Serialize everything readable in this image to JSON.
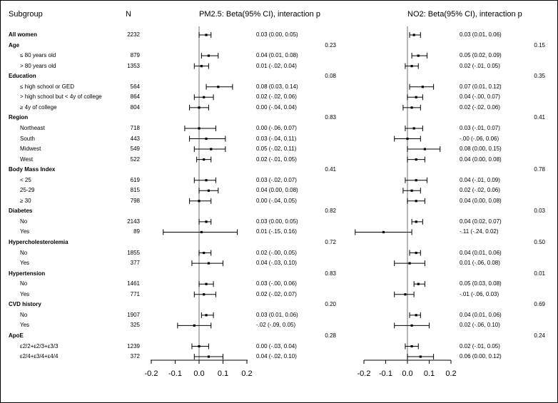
{
  "headers": {
    "subgroup": "Subgroup",
    "n": "N",
    "pm25": "PM2.5: Beta(95% CI), interaction p",
    "no2": "NO2: Beta(95% CI), interaction p"
  },
  "chart_data": {
    "type": "forest",
    "panels": [
      {
        "name": "PM2.5",
        "title": "PM2.5: Beta(95% CI), interaction p",
        "xlim": [
          -0.25,
          0.22
        ],
        "ticks": [
          -0.2,
          -0.1,
          0.0,
          0.1,
          0.2
        ],
        "tick_labels": [
          "-0.2",
          "-0.1",
          "0.0",
          "0.1",
          "0.2"
        ]
      },
      {
        "name": "NO2",
        "title": "NO2: Beta(95% CI), interaction p",
        "xlim": [
          -0.25,
          0.22
        ],
        "ticks": [
          -0.2,
          -0.1,
          0.0,
          0.1,
          0.2
        ],
        "tick_labels": [
          "-0.2",
          "-0.1",
          "0.0",
          "0.1",
          "0.2"
        ]
      }
    ],
    "rows": [
      {
        "label": "All women",
        "kind": "category",
        "n": "2232",
        "pm": {
          "est": 0.03,
          "lo": 0.0,
          "hi": 0.05,
          "text": "0.03 (0.00, 0.05)"
        },
        "no2": {
          "est": 0.03,
          "lo": 0.01,
          "hi": 0.06,
          "text": "0.03 (0.01, 0.06)"
        }
      },
      {
        "label": "Age",
        "kind": "category",
        "pm_p": "0.23",
        "no2_p": "0.15"
      },
      {
        "label": "≤ 80 years old",
        "kind": "sub",
        "n": "879",
        "pm": {
          "est": 0.04,
          "lo": 0.01,
          "hi": 0.08,
          "text": "0.04 (0.01, 0.08)"
        },
        "no2": {
          "est": 0.05,
          "lo": 0.02,
          "hi": 0.09,
          "text": "0.05 (0.02, 0.09)"
        }
      },
      {
        "label": "> 80 years old",
        "kind": "sub",
        "n": "1353",
        "pm": {
          "est": 0.01,
          "lo": -0.02,
          "hi": 0.04,
          "text": "0.01 (-.02, 0.04)"
        },
        "no2": {
          "est": 0.02,
          "lo": -0.01,
          "hi": 0.05,
          "text": "0.02 (-.01, 0.05)"
        }
      },
      {
        "label": "Education",
        "kind": "category",
        "pm_p": "0.08",
        "no2_p": "0.35"
      },
      {
        "label": "≤ high school or GED",
        "kind": "sub",
        "n": "564",
        "pm": {
          "est": 0.08,
          "lo": 0.03,
          "hi": 0.14,
          "text": "0.08 (0.03, 0.14)"
        },
        "no2": {
          "est": 0.07,
          "lo": 0.01,
          "hi": 0.12,
          "text": "0.07 (0.01, 0.12)"
        }
      },
      {
        "label": "> high school but < 4y of college",
        "kind": "sub",
        "n": "864",
        "pm": {
          "est": 0.02,
          "lo": -0.02,
          "hi": 0.06,
          "text": "0.02 (-.02, 0.06)"
        },
        "no2": {
          "est": 0.04,
          "lo": -0.0,
          "hi": 0.07,
          "text": "0.04 (-.00, 0.07)"
        }
      },
      {
        "label": "≥ 4y of college",
        "kind": "sub",
        "n": "804",
        "pm": {
          "est": 0.0,
          "lo": -0.04,
          "hi": 0.04,
          "text": "0.00 (-.04, 0.04)"
        },
        "no2": {
          "est": 0.02,
          "lo": -0.02,
          "hi": 0.06,
          "text": "0.02 (-.02, 0.06)"
        }
      },
      {
        "label": "Region",
        "kind": "category",
        "pm_p": "0.83",
        "no2_p": "0.41"
      },
      {
        "label": "Northeast",
        "kind": "sub",
        "n": "718",
        "pm": {
          "est": 0.0,
          "lo": -0.06,
          "hi": 0.07,
          "text": "0.00 (-.06, 0.07)"
        },
        "no2": {
          "est": 0.03,
          "lo": -0.01,
          "hi": 0.07,
          "text": "0.03 (-.01, 0.07)"
        }
      },
      {
        "label": "South",
        "kind": "sub",
        "n": "443",
        "pm": {
          "est": 0.03,
          "lo": -0.04,
          "hi": 0.11,
          "text": "0.03 (-.04, 0.11)"
        },
        "no2": {
          "est": -0.0,
          "lo": -0.06,
          "hi": 0.06,
          "text": "-.00 (-.06, 0.06)"
        }
      },
      {
        "label": "Midwest",
        "kind": "sub",
        "n": "549",
        "pm": {
          "est": 0.05,
          "lo": -0.02,
          "hi": 0.11,
          "text": "0.05 (-.02, 0.11)"
        },
        "no2": {
          "est": 0.08,
          "lo": 0.0,
          "hi": 0.15,
          "text": "0.08 (0.00, 0.15)"
        }
      },
      {
        "label": "West",
        "kind": "sub",
        "n": "522",
        "pm": {
          "est": 0.02,
          "lo": -0.01,
          "hi": 0.05,
          "text": "0.02 (-.01, 0.05)"
        },
        "no2": {
          "est": 0.04,
          "lo": 0.0,
          "hi": 0.08,
          "text": "0.04 (0.00, 0.08)"
        }
      },
      {
        "label": "Body Mass Index",
        "kind": "category",
        "pm_p": "0.41",
        "no2_p": "0.78"
      },
      {
        "label": "< 25",
        "kind": "sub",
        "n": "619",
        "pm": {
          "est": 0.03,
          "lo": -0.02,
          "hi": 0.07,
          "text": "0.03 (-.02, 0.07)"
        },
        "no2": {
          "est": 0.04,
          "lo": -0.01,
          "hi": 0.09,
          "text": "0.04 (-.01, 0.09)"
        }
      },
      {
        "label": "25-29",
        "kind": "sub",
        "n": "815",
        "pm": {
          "est": 0.04,
          "lo": 0.0,
          "hi": 0.08,
          "text": "0.04 (0.00, 0.08)"
        },
        "no2": {
          "est": 0.02,
          "lo": -0.02,
          "hi": 0.06,
          "text": "0.02 (-.02, 0.06)"
        }
      },
      {
        "label": "≥ 30",
        "kind": "sub",
        "n": "798",
        "pm": {
          "est": 0.0,
          "lo": -0.04,
          "hi": 0.05,
          "text": "0.00 (-.04, 0.05)"
        },
        "no2": {
          "est": 0.04,
          "lo": 0.0,
          "hi": 0.08,
          "text": "0.04 (0.00, 0.08)"
        }
      },
      {
        "label": "Diabetes",
        "kind": "category",
        "pm_p": "0.82",
        "no2_p": "0.03"
      },
      {
        "label": "No",
        "kind": "sub",
        "n": "2143",
        "pm": {
          "est": 0.03,
          "lo": 0.0,
          "hi": 0.05,
          "text": "0.03 (0.00, 0.05)"
        },
        "no2": {
          "est": 0.04,
          "lo": 0.02,
          "hi": 0.07,
          "text": "0.04 (0.02, 0.07)"
        }
      },
      {
        "label": "Yes",
        "kind": "sub",
        "n": "89",
        "pm": {
          "est": 0.01,
          "lo": -0.15,
          "hi": 0.16,
          "text": "0.01 (-.15, 0.16)"
        },
        "no2": {
          "est": -0.11,
          "lo": -0.24,
          "hi": 0.02,
          "text": "-.11 (-.24, 0.02)"
        }
      },
      {
        "label": "Hypercholesterolemia",
        "kind": "category",
        "pm_p": "0.72",
        "no2_p": "0.50"
      },
      {
        "label": "No",
        "kind": "sub",
        "n": "1855",
        "pm": {
          "est": 0.02,
          "lo": -0.0,
          "hi": 0.05,
          "text": "0.02 (-.00, 0.05)"
        },
        "no2": {
          "est": 0.04,
          "lo": 0.01,
          "hi": 0.06,
          "text": "0.04 (0.01, 0.06)"
        }
      },
      {
        "label": "Yes",
        "kind": "sub",
        "n": "377",
        "pm": {
          "est": 0.04,
          "lo": -0.03,
          "hi": 0.1,
          "text": "0.04 (-.03, 0.10)"
        },
        "no2": {
          "est": 0.01,
          "lo": -0.06,
          "hi": 0.08,
          "text": "0.01 (-.06, 0.08)"
        }
      },
      {
        "label": "Hypertension",
        "kind": "category",
        "pm_p": "0.83",
        "no2_p": "0.01"
      },
      {
        "label": "No",
        "kind": "sub",
        "n": "1461",
        "pm": {
          "est": 0.03,
          "lo": -0.0,
          "hi": 0.06,
          "text": "0.03 (-.00, 0.06)"
        },
        "no2": {
          "est": 0.05,
          "lo": 0.03,
          "hi": 0.08,
          "text": "0.05 (0.03, 0.08)"
        }
      },
      {
        "label": "Yes",
        "kind": "sub",
        "n": "771",
        "pm": {
          "est": 0.02,
          "lo": -0.02,
          "hi": 0.07,
          "text": "0.02 (-.02, 0.07)"
        },
        "no2": {
          "est": -0.01,
          "lo": -0.06,
          "hi": 0.03,
          "text": "-.01 (-.06, 0.03)"
        }
      },
      {
        "label": "CVD history",
        "kind": "category",
        "pm_p": "0.20",
        "no2_p": "0.69"
      },
      {
        "label": "No",
        "kind": "sub",
        "n": "1907",
        "pm": {
          "est": 0.03,
          "lo": 0.01,
          "hi": 0.06,
          "text": "0.03 (0.01, 0.06)"
        },
        "no2": {
          "est": 0.04,
          "lo": 0.01,
          "hi": 0.06,
          "text": "0.04 (0.01, 0.06)"
        }
      },
      {
        "label": "Yes",
        "kind": "sub",
        "n": "325",
        "pm": {
          "est": -0.02,
          "lo": -0.09,
          "hi": 0.05,
          "text": "-.02 (-.09, 0.05)"
        },
        "no2": {
          "est": 0.02,
          "lo": -0.06,
          "hi": 0.1,
          "text": "0.02 (-.06, 0.10)"
        }
      },
      {
        "label": "ApoE",
        "kind": "category",
        "pm_p": "0.28",
        "no2_p": "0.24"
      },
      {
        "label": "ε2/2+ε2/3+ε3/3",
        "kind": "sub",
        "n": "1239",
        "pm": {
          "est": 0.0,
          "lo": -0.03,
          "hi": 0.04,
          "text": "0.00 (-.03, 0.04)"
        },
        "no2": {
          "est": 0.02,
          "lo": -0.01,
          "hi": 0.05,
          "text": "0.02 (-.01, 0.05)"
        }
      },
      {
        "label": "ε2/4+ε3/4+ε4/4",
        "kind": "sub",
        "n": "372",
        "pm": {
          "est": 0.04,
          "lo": -0.02,
          "hi": 0.1,
          "text": "0.04 (-.02, 0.10)"
        },
        "no2": {
          "est": 0.06,
          "lo": 0.0,
          "hi": 0.12,
          "text": "0.06 (0.00, 0.12)"
        }
      }
    ]
  }
}
